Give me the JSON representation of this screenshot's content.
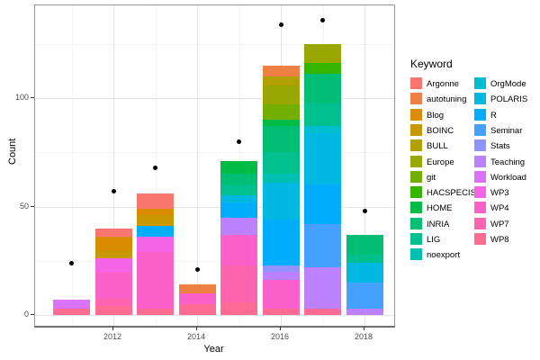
{
  "axes": {
    "x_title": "Year",
    "y_title": "Count",
    "x_ticks": [
      2012,
      2014,
      2016,
      2018
    ],
    "y_ticks": [
      0,
      50,
      100
    ]
  },
  "legend": {
    "title": "Keyword",
    "items": [
      {
        "label": "Argonne",
        "color": "#F8766D"
      },
      {
        "label": "autotuning",
        "color": "#EE8043"
      },
      {
        "label": "Blog",
        "color": "#DC8C00"
      },
      {
        "label": "BOINC",
        "color": "#C99800"
      },
      {
        "label": "BULL",
        "color": "#B2A000"
      },
      {
        "label": "Europe",
        "color": "#99A800"
      },
      {
        "label": "git",
        "color": "#72AF00"
      },
      {
        "label": "HACSPECIS",
        "color": "#35B600"
      },
      {
        "label": "HOME",
        "color": "#00BB44"
      },
      {
        "label": "INRIA",
        "color": "#00BF74"
      },
      {
        "label": "LIG",
        "color": "#00C08E"
      },
      {
        "label": "noexport",
        "color": "#00C0B2"
      },
      {
        "label": "OrgMode",
        "color": "#00BECD"
      },
      {
        "label": "POLARIS",
        "color": "#00B8E2"
      },
      {
        "label": "R",
        "color": "#00ACFC"
      },
      {
        "label": "Seminar",
        "color": "#45A1FF"
      },
      {
        "label": "Stats",
        "color": "#9092FF"
      },
      {
        "label": "Teaching",
        "color": "#BC81FF"
      },
      {
        "label": "Workload",
        "color": "#DA73F9"
      },
      {
        "label": "WP3",
        "color": "#F365E6"
      },
      {
        "label": "WP4",
        "color": "#FC61CB"
      },
      {
        "label": "WP7",
        "color": "#FF64B1"
      },
      {
        "label": "WP8",
        "color": "#FF6B94"
      }
    ]
  },
  "chart_data": {
    "type": "bar",
    "subtype": "stacked-bars-with-points",
    "xlabel": "Year",
    "ylabel": "Count",
    "ylim": [
      0,
      142
    ],
    "grid": {
      "y_major": [
        0,
        50,
        100
      ],
      "y_minor": [
        25,
        75,
        125
      ],
      "x_major": [
        2012,
        2014,
        2016,
        2018
      ],
      "x_minor": [
        2011,
        2013,
        2015,
        2017
      ]
    },
    "legend_position": "right",
    "bars": [
      {
        "year": 2011,
        "total": 7,
        "segments_bottom_to_top": [
          {
            "keyword": "WP8",
            "value": 3
          },
          {
            "keyword": "Workload",
            "value": 4
          }
        ]
      },
      {
        "year": 2012,
        "total": 40,
        "segments_bottom_to_top": [
          {
            "keyword": "WP8",
            "value": 4
          },
          {
            "keyword": "WP7",
            "value": 4
          },
          {
            "keyword": "WP4",
            "value": 12
          },
          {
            "keyword": "WP3",
            "value": 6
          },
          {
            "keyword": "BOINC",
            "value": 4
          },
          {
            "keyword": "Blog",
            "value": 6
          },
          {
            "keyword": "Argonne",
            "value": 4
          }
        ]
      },
      {
        "year": 2013,
        "total": 56,
        "segments_bottom_to_top": [
          {
            "keyword": "WP8",
            "value": 3
          },
          {
            "keyword": "WP4",
            "value": 26
          },
          {
            "keyword": "WP3",
            "value": 7
          },
          {
            "keyword": "R",
            "value": 5
          },
          {
            "keyword": "BOINC",
            "value": 5
          },
          {
            "keyword": "Blog",
            "value": 3
          },
          {
            "keyword": "Argonne",
            "value": 7
          }
        ]
      },
      {
        "year": 2014,
        "total": 14,
        "segments_bottom_to_top": [
          {
            "keyword": "WP8",
            "value": 5
          },
          {
            "keyword": "WP4",
            "value": 5
          },
          {
            "keyword": "autotuning",
            "value": 4
          }
        ]
      },
      {
        "year": 2015,
        "total": 71,
        "segments_bottom_to_top": [
          {
            "keyword": "WP8",
            "value": 6
          },
          {
            "keyword": "WP7",
            "value": 17
          },
          {
            "keyword": "WP4",
            "value": 14
          },
          {
            "keyword": "Teaching",
            "value": 8
          },
          {
            "keyword": "R",
            "value": 7
          },
          {
            "keyword": "POLARIS",
            "value": 3
          },
          {
            "keyword": "LIG",
            "value": 5
          },
          {
            "keyword": "INRIA",
            "value": 5
          },
          {
            "keyword": "HOME",
            "value": 6
          }
        ]
      },
      {
        "year": 2016,
        "total": 115,
        "segments_bottom_to_top": [
          {
            "keyword": "WP8",
            "value": 3
          },
          {
            "keyword": "WP4",
            "value": 13
          },
          {
            "keyword": "Teaching",
            "value": 4
          },
          {
            "keyword": "Stats",
            "value": 3
          },
          {
            "keyword": "R",
            "value": 21
          },
          {
            "keyword": "POLARIS",
            "value": 17
          },
          {
            "keyword": "noexport",
            "value": 4
          },
          {
            "keyword": "LIG",
            "value": 10
          },
          {
            "keyword": "INRIA",
            "value": 12
          },
          {
            "keyword": "HOME",
            "value": 3
          },
          {
            "keyword": "git",
            "value": 7
          },
          {
            "keyword": "Europe",
            "value": 9
          },
          {
            "keyword": "BULL",
            "value": 4
          },
          {
            "keyword": "autotuning",
            "value": 5
          }
        ]
      },
      {
        "year": 2017,
        "total": 125,
        "segments_bottom_to_top": [
          {
            "keyword": "WP8",
            "value": 3
          },
          {
            "keyword": "Teaching",
            "value": 19
          },
          {
            "keyword": "Seminar",
            "value": 20
          },
          {
            "keyword": "R",
            "value": 18
          },
          {
            "keyword": "POLARIS",
            "value": 24
          },
          {
            "keyword": "OrgMode",
            "value": 3
          },
          {
            "keyword": "LIG",
            "value": 11
          },
          {
            "keyword": "INRIA",
            "value": 13
          },
          {
            "keyword": "HACSPECIS",
            "value": 5
          },
          {
            "keyword": "Europe",
            "value": 9
          }
        ]
      },
      {
        "year": 2018,
        "total": 37,
        "segments_bottom_to_top": [
          {
            "keyword": "Teaching",
            "value": 3
          },
          {
            "keyword": "Seminar",
            "value": 12
          },
          {
            "keyword": "POLARIS",
            "value": 9
          },
          {
            "keyword": "LIG",
            "value": 4
          },
          {
            "keyword": "INRIA",
            "value": 9
          }
        ]
      }
    ],
    "points": [
      {
        "year": 2011,
        "value": 24
      },
      {
        "year": 2012,
        "value": 57
      },
      {
        "year": 2013,
        "value": 68
      },
      {
        "year": 2014,
        "value": 21
      },
      {
        "year": 2015,
        "value": 80
      },
      {
        "year": 2016,
        "value": 134
      },
      {
        "year": 2017,
        "value": 136
      },
      {
        "year": 2018,
        "value": 48
      }
    ]
  }
}
